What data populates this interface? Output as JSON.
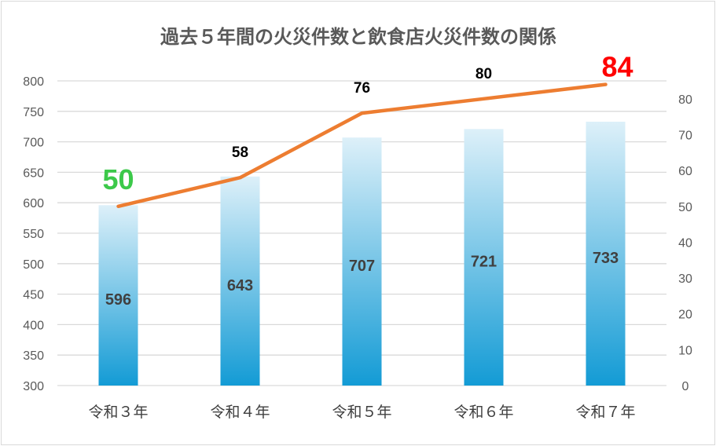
{
  "chart_data": {
    "type": "bar+line",
    "title": "過去５年間の火災件数と飲食店火災件数の関係",
    "categories": [
      "令和３年",
      "令和４年",
      "令和５年",
      "令和６年",
      "令和７年"
    ],
    "series": [
      {
        "name": "火災件数",
        "type": "bar",
        "axis": "left",
        "values": [
          596,
          643,
          707,
          721,
          733
        ],
        "color": "#1a9fd6"
      },
      {
        "name": "飲食店火災件数",
        "type": "line",
        "axis": "right",
        "values": [
          50,
          58,
          76,
          80,
          84
        ],
        "color": "#ed7d31",
        "label_colors": [
          "#3cc94a",
          "#000000",
          "#000000",
          "#000000",
          "#ff0000"
        ]
      }
    ],
    "left_axis": {
      "ylim": [
        300,
        800
      ],
      "ticks": [
        300,
        350,
        400,
        450,
        500,
        550,
        600,
        650,
        700,
        750,
        800
      ]
    },
    "right_axis": {
      "ylim": [
        0,
        85
      ],
      "ticks": [
        0,
        10,
        20,
        30,
        40,
        50,
        60,
        70,
        80
      ]
    },
    "grid": true,
    "legend": "none"
  }
}
